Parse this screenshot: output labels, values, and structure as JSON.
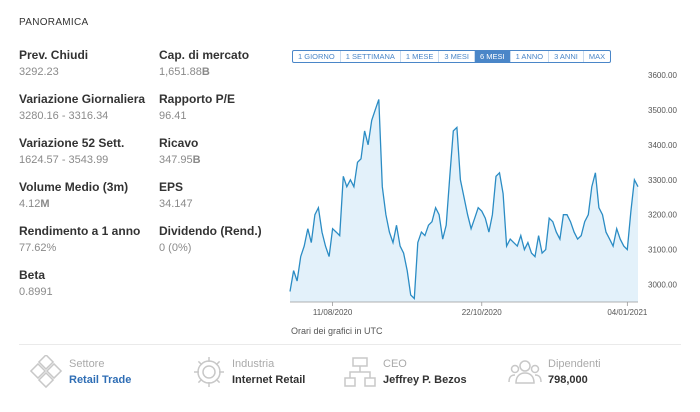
{
  "section_title": "PANORAMICA",
  "stats": [
    {
      "label": "Prev. Chiudi",
      "value": "3292.23",
      "bold_suffix": ""
    },
    {
      "label": "Cap. di mercato",
      "value": "1,651.88",
      "bold_suffix": "B"
    },
    {
      "label": "Variazione Giornaliera",
      "value": "3280.16 - 3316.34",
      "bold_suffix": ""
    },
    {
      "label": "Rapporto P/E",
      "value": "96.41",
      "bold_suffix": ""
    },
    {
      "label": "Variazione 52 Sett.",
      "value": "1624.57 - 3543.99",
      "bold_suffix": ""
    },
    {
      "label": "Ricavo",
      "value": "347.95",
      "bold_suffix": "B"
    },
    {
      "label": "Volume Medio (3m)",
      "value": "4.12",
      "bold_suffix": "M"
    },
    {
      "label": "EPS",
      "value": "34.147",
      "bold_suffix": ""
    },
    {
      "label": "Rendimento a 1 anno",
      "value": "77.62%",
      "bold_suffix": ""
    },
    {
      "label": "Dividendo (Rend.)",
      "value": "0 (0%)",
      "bold_suffix": ""
    },
    {
      "label": "Beta",
      "value": "0.8991",
      "bold_suffix": ""
    }
  ],
  "tabs": [
    {
      "label": "1 GIORNO",
      "active": false
    },
    {
      "label": "1 SETTIMANA",
      "active": false
    },
    {
      "label": "1 MESE",
      "active": false
    },
    {
      "label": "3 MESI",
      "active": false
    },
    {
      "label": "6 MESI",
      "active": true
    },
    {
      "label": "1 ANNO",
      "active": false
    },
    {
      "label": "3 ANNI",
      "active": false
    },
    {
      "label": "MAX",
      "active": false
    }
  ],
  "chart_note": "Orari dei grafici in UTC",
  "chart_data": {
    "type": "area",
    "x_tick_labels": [
      "11/08/2020",
      "22/10/2020",
      "04/01/2021"
    ],
    "x_tick_index": [
      12,
      54,
      95
    ],
    "y_ticks": [
      3000,
      3100,
      3200,
      3300,
      3400,
      3500,
      3600
    ],
    "y_tick_labels": [
      "3000.00",
      "3100.00",
      "3200.00",
      "3300.00",
      "3400.00",
      "3500.00",
      "3600.00"
    ],
    "ylim": [
      2950,
      3620
    ],
    "line_color": "#2b8cc4",
    "fill_color": "#e3f1fa",
    "values": [
      2980,
      3040,
      3010,
      3080,
      3110,
      3160,
      3120,
      3200,
      3220,
      3150,
      3110,
      3080,
      3160,
      3150,
      3140,
      3310,
      3280,
      3300,
      3280,
      3350,
      3360,
      3440,
      3400,
      3470,
      3500,
      3530,
      3280,
      3200,
      3150,
      3120,
      3170,
      3110,
      3090,
      3040,
      2970,
      2960,
      3120,
      3150,
      3140,
      3170,
      3180,
      3220,
      3200,
      3130,
      3170,
      3310,
      3440,
      3450,
      3300,
      3250,
      3200,
      3160,
      3190,
      3220,
      3210,
      3190,
      3150,
      3200,
      3310,
      3320,
      3260,
      3110,
      3130,
      3120,
      3110,
      3140,
      3100,
      3120,
      3090,
      3080,
      3140,
      3090,
      3100,
      3190,
      3180,
      3150,
      3130,
      3200,
      3200,
      3180,
      3150,
      3130,
      3140,
      3180,
      3200,
      3280,
      3320,
      3220,
      3200,
      3150,
      3130,
      3110,
      3160,
      3130,
      3110,
      3100,
      3210,
      3300,
      3280
    ]
  },
  "info": [
    {
      "label": "Settore",
      "value": "Retail Trade",
      "icon": "sector-icon",
      "link": true
    },
    {
      "label": "Industria",
      "value": "Internet Retail",
      "icon": "gear-icon",
      "link": false
    },
    {
      "label": "CEO",
      "value": "Jeffrey P. Bezos",
      "icon": "org-chart-icon",
      "link": false
    },
    {
      "label": "Dipendenti",
      "value": "798,000",
      "icon": "people-icon",
      "link": false
    }
  ]
}
